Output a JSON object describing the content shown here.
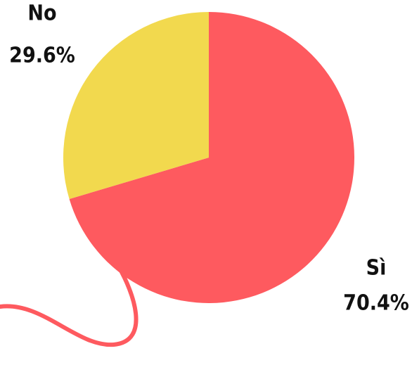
{
  "chart_data": {
    "type": "pie",
    "categories": [
      "Sì",
      "No"
    ],
    "values": [
      70.4,
      29.6
    ],
    "value_labels": [
      "70.4%",
      "29.6%"
    ],
    "colors": [
      "#fe5a5f",
      "#f2d94e"
    ]
  }
}
